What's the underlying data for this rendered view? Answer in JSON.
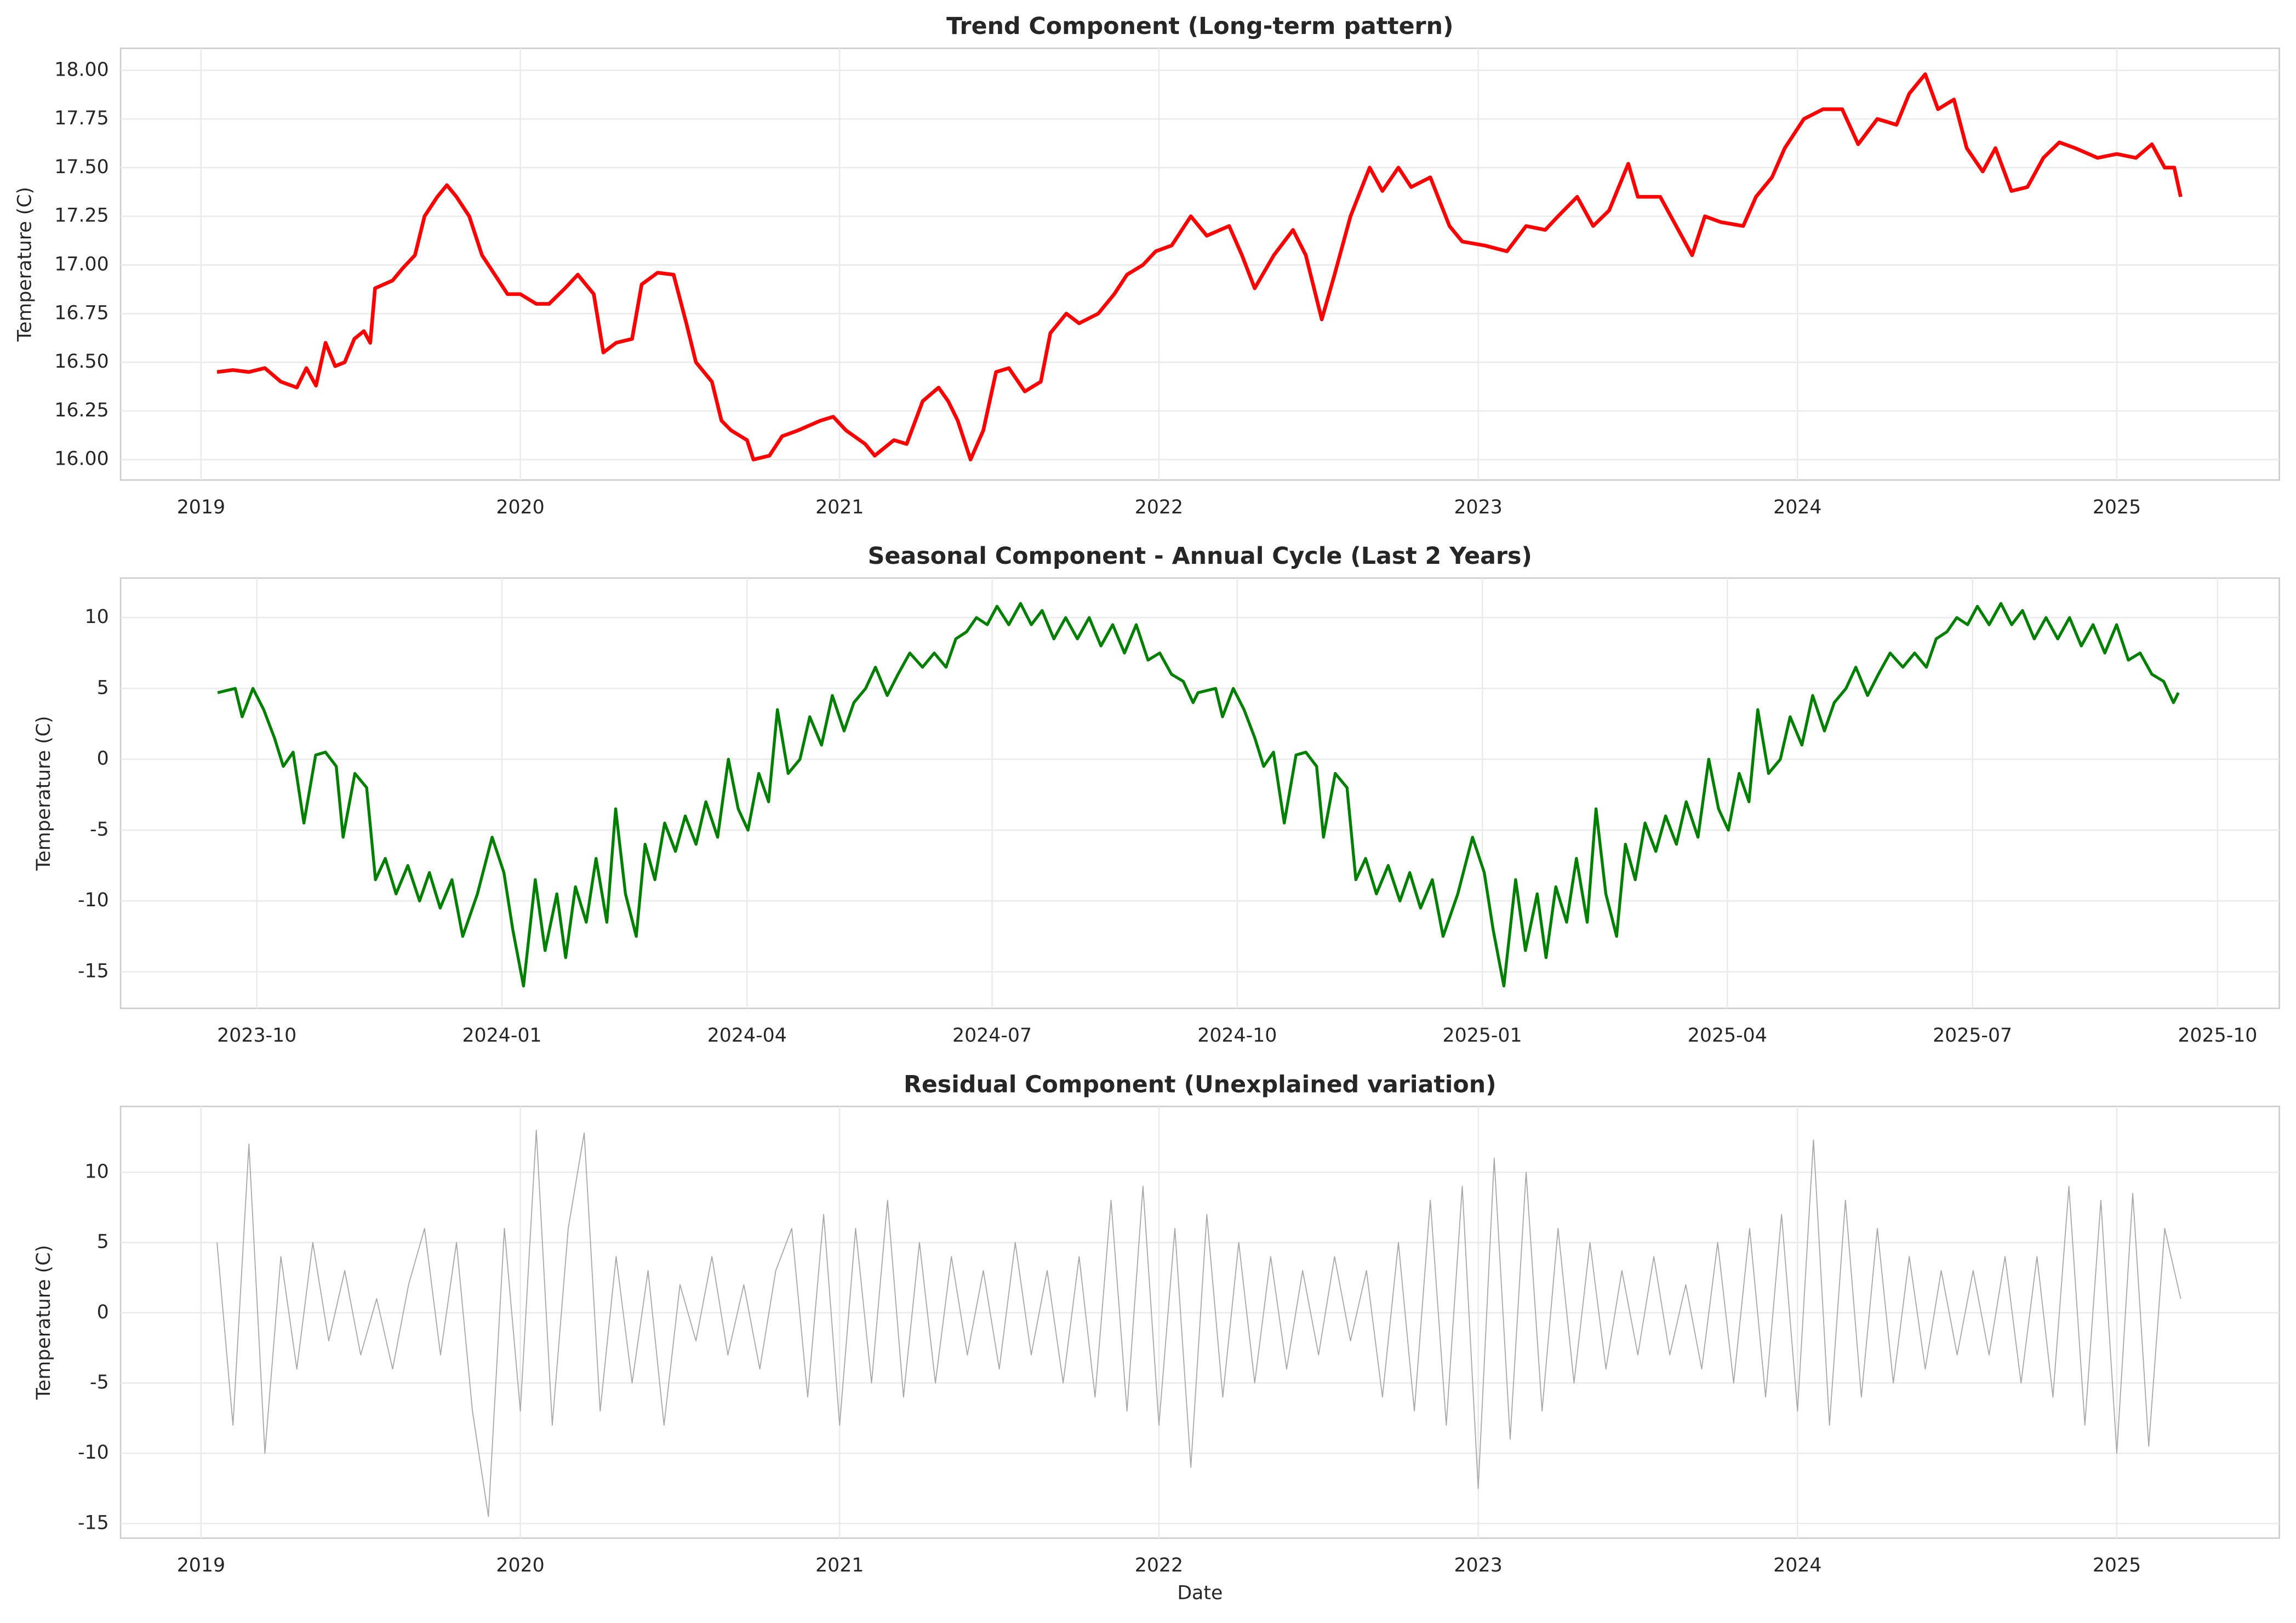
{
  "chart_data": [
    {
      "type": "line",
      "title": "Trend Component (Long-term pattern)",
      "y_label": "Temperature (C)",
      "grid": true,
      "xlim": [
        2018.748,
        2025.509
      ],
      "xticks": [
        2019,
        2020,
        2021,
        2022,
        2023,
        2024,
        2025
      ],
      "ylim": [
        15.895,
        18.113
      ],
      "yticks": [
        {
          "value": 16,
          "label": "16.00"
        },
        16.25,
        {
          "value": 16.5,
          "label": "16.50"
        },
        16.75,
        {
          "value": 17,
          "label": "17.00"
        },
        17.25,
        {
          "value": 17.5,
          "label": "17.50"
        },
        17.75,
        {
          "value": 18,
          "label": "18.00"
        }
      ],
      "x": [
        2019.05,
        2019.1,
        2019.15,
        2019.2,
        2019.25,
        2019.3,
        2019.33,
        2019.36,
        2019.39,
        2019.42,
        2019.45,
        2019.48,
        2019.51,
        2019.53,
        2019.545,
        2019.6,
        2019.63,
        2019.67,
        2019.7,
        2019.74,
        2019.77,
        2019.8,
        2019.84,
        2019.88,
        2019.92,
        2019.96,
        2020.0,
        2020.05,
        2020.09,
        2020.14,
        2020.18,
        2020.23,
        2020.26,
        2020.3,
        2020.35,
        2020.38,
        2020.43,
        2020.48,
        2020.52,
        2020.55,
        2020.6,
        2020.63,
        2020.66,
        2020.71,
        2020.73,
        2020.78,
        2020.82,
        2020.87,
        2020.94,
        2020.98,
        2021.02,
        2021.08,
        2021.11,
        2021.17,
        2021.21,
        2021.26,
        2021.31,
        2021.34,
        2021.37,
        2021.41,
        2021.45,
        2021.49,
        2021.53,
        2021.58,
        2021.63,
        2021.66,
        2021.71,
        2021.75,
        2021.81,
        2021.86,
        2021.9,
        2021.95,
        2021.99,
        2022.04,
        2022.1,
        2022.15,
        2022.22,
        2022.26,
        2022.3,
        2022.36,
        2022.42,
        2022.46,
        2022.51,
        2022.55,
        2022.6,
        2022.66,
        2022.7,
        2022.75,
        2022.79,
        2022.85,
        2022.91,
        2022.95,
        2023.02,
        2023.09,
        2023.15,
        2023.21,
        2023.25,
        2023.31,
        2023.36,
        2023.41,
        2023.47,
        2023.5,
        2023.57,
        2023.62,
        2023.67,
        2023.71,
        2023.76,
        2023.83,
        2023.87,
        2023.92,
        2023.96,
        2024.02,
        2024.08,
        2024.14,
        2024.19,
        2024.25,
        2024.31,
        2024.35,
        2024.4,
        2024.44,
        2024.49,
        2024.53,
        2024.58,
        2024.62,
        2024.67,
        2024.72,
        2024.77,
        2024.82,
        2024.87,
        2024.94,
        2025.0,
        2025.06,
        2025.11,
        2025.15,
        2025.18,
        2025.2
      ],
      "series": [
        {
          "color": "#ff0000",
          "values": [
            16.45,
            16.46,
            16.45,
            16.47,
            16.4,
            16.37,
            16.47,
            16.38,
            16.6,
            16.48,
            16.5,
            16.62,
            16.66,
            16.6,
            16.88,
            16.92,
            16.98,
            17.05,
            17.25,
            17.35,
            17.41,
            17.35,
            17.25,
            17.05,
            16.95,
            16.85,
            16.85,
            16.8,
            16.8,
            16.88,
            16.95,
            16.85,
            16.55,
            16.6,
            16.62,
            16.9,
            16.96,
            16.95,
            16.7,
            16.5,
            16.4,
            16.2,
            16.15,
            16.1,
            16.0,
            16.02,
            16.12,
            16.15,
            16.2,
            16.22,
            16.15,
            16.08,
            16.02,
            16.1,
            16.08,
            16.3,
            16.37,
            16.3,
            16.2,
            16.0,
            16.15,
            16.45,
            16.47,
            16.35,
            16.4,
            16.65,
            16.75,
            16.7,
            16.75,
            16.85,
            16.95,
            17.0,
            17.07,
            17.1,
            17.25,
            17.15,
            17.2,
            17.05,
            16.88,
            17.05,
            17.18,
            17.05,
            16.72,
            16.95,
            17.25,
            17.5,
            17.38,
            17.5,
            17.4,
            17.45,
            17.2,
            17.12,
            17.1,
            17.07,
            17.2,
            17.18,
            17.25,
            17.35,
            17.2,
            17.28,
            17.52,
            17.35,
            17.35,
            17.2,
            17.05,
            17.25,
            17.22,
            17.2,
            17.35,
            17.45,
            17.6,
            17.75,
            17.8,
            17.8,
            17.62,
            17.75,
            17.72,
            17.88,
            17.98,
            17.8,
            17.85,
            17.6,
            17.48,
            17.6,
            17.38,
            17.4,
            17.55,
            17.63,
            17.6,
            17.55,
            17.57,
            17.55,
            17.62,
            17.5,
            17.5,
            17.35
          ],
          "line_width": 2.5
        }
      ]
    },
    {
      "type": "line",
      "title": "Seasonal Component - Annual Cycle (Last 2 Years)",
      "y_label": "Temperature (C)",
      "grid": true,
      "xlim": [
        2023.611,
        2025.813
      ],
      "xticks": [
        {
          "value": 2023.75,
          "label": "2023-10"
        },
        {
          "value": 2024.0,
          "label": "2024-01"
        },
        {
          "value": 2024.25,
          "label": "2024-04"
        },
        {
          "value": 2024.5,
          "label": "2024-07"
        },
        {
          "value": 2024.75,
          "label": "2024-10"
        },
        {
          "value": 2025.0,
          "label": "2025-01"
        },
        {
          "value": 2025.25,
          "label": "2025-04"
        },
        {
          "value": 2025.5,
          "label": "2025-07"
        },
        {
          "value": 2025.75,
          "label": "2025-10"
        }
      ],
      "ylim": [
        -17.58,
        12.79
      ],
      "yticks": [
        -15,
        -10,
        -5,
        0,
        5,
        10
      ],
      "x": [
        2023.71,
        2023.728,
        2023.735,
        2023.746,
        2023.757,
        2023.768,
        2023.777,
        2023.787,
        2023.798,
        2023.81,
        2023.82,
        2023.831,
        2023.838,
        2023.85,
        2023.862,
        2023.871,
        2023.881,
        2023.892,
        2023.904,
        2023.916,
        2023.926,
        2023.937,
        2023.949,
        2023.96,
        2023.975,
        2023.99,
        2024.002,
        2024.011,
        2024.022,
        2024.034,
        2024.044,
        2024.056,
        2024.065,
        2024.075,
        2024.086,
        2024.096,
        2024.107,
        2024.116,
        2024.126,
        2024.137,
        2024.146,
        2024.156,
        2024.166,
        2024.177,
        2024.187,
        2024.198,
        2024.208,
        2024.22,
        2024.231,
        2024.241,
        2024.251,
        2024.262,
        2024.272,
        2024.281,
        2024.292,
        2024.304,
        2024.314,
        2024.326,
        2024.337,
        2024.349,
        2024.359,
        2024.371,
        2024.381,
        2024.393,
        2024.404,
        2024.416,
        2024.429,
        2024.441,
        2024.453,
        2024.463,
        2024.474,
        2024.484,
        2024.495,
        2024.505,
        2024.517,
        2024.529,
        2024.54,
        2024.551,
        2024.563,
        2024.575,
        2024.587,
        2024.599,
        2024.611,
        2024.623,
        2024.635,
        2024.647,
        2024.659,
        2024.671,
        2024.683,
        2024.695,
        2024.705,
        2024.71,
        2024.728,
        2024.735,
        2024.746,
        2024.757,
        2024.768,
        2024.777,
        2024.787,
        2024.798,
        2024.81,
        2024.82,
        2024.831,
        2024.838,
        2024.85,
        2024.862,
        2024.871,
        2024.881,
        2024.892,
        2024.904,
        2024.916,
        2024.926,
        2024.937,
        2024.949,
        2024.96,
        2024.975,
        2024.99,
        2025.002,
        2025.011,
        2025.022,
        2025.034,
        2025.044,
        2025.056,
        2025.065,
        2025.075,
        2025.086,
        2025.096,
        2025.107,
        2025.116,
        2025.126,
        2025.137,
        2025.146,
        2025.156,
        2025.166,
        2025.177,
        2025.187,
        2025.198,
        2025.208,
        2025.22,
        2025.231,
        2025.241,
        2025.251,
        2025.262,
        2025.272,
        2025.281,
        2025.292,
        2025.304,
        2025.314,
        2025.326,
        2025.337,
        2025.349,
        2025.359,
        2025.371,
        2025.381,
        2025.393,
        2025.404,
        2025.416,
        2025.429,
        2025.441,
        2025.453,
        2025.463,
        2025.474,
        2025.484,
        2025.495,
        2025.505,
        2025.517,
        2025.529,
        2025.54,
        2025.551,
        2025.563,
        2025.575,
        2025.587,
        2025.599,
        2025.611,
        2025.623,
        2025.635,
        2025.647,
        2025.659,
        2025.671,
        2025.683,
        2025.695,
        2025.705,
        2025.71
      ],
      "series": [
        {
          "color": "#008000",
          "line_width": 2,
          "values": [
            4.7,
            5.0,
            3.0,
            5.0,
            3.5,
            1.5,
            -0.5,
            0.5,
            -4.5,
            0.3,
            0.5,
            -0.5,
            -5.5,
            -1.0,
            -2.0,
            -8.5,
            -7.0,
            -9.5,
            -7.5,
            -10.0,
            -8.0,
            -10.5,
            -8.5,
            -12.5,
            -9.5,
            -5.5,
            -8.0,
            -12.0,
            -16.0,
            -8.5,
            -13.5,
            -9.5,
            -14.0,
            -9.0,
            -11.5,
            -7.0,
            -11.5,
            -3.5,
            -9.5,
            -12.5,
            -6.0,
            -8.5,
            -4.5,
            -6.5,
            -4.0,
            -6.0,
            -3.0,
            -5.5,
            0.0,
            -3.5,
            -5.0,
            -1.0,
            -3.0,
            3.5,
            -1.0,
            0.0,
            3.0,
            1.0,
            4.5,
            2.0,
            4.0,
            5.0,
            6.5,
            4.5,
            6.0,
            7.5,
            6.5,
            7.5,
            6.5,
            8.5,
            9.0,
            10.0,
            9.5,
            10.8,
            9.5,
            11.0,
            9.5,
            10.5,
            8.5,
            10.0,
            8.5,
            10.0,
            8.0,
            9.5,
            7.5,
            9.5,
            7.0,
            7.5,
            6.0,
            5.5,
            4.0,
            4.7,
            5.0,
            3.0,
            5.0,
            3.5,
            1.5,
            -0.5,
            0.5,
            -4.5,
            0.3,
            0.5,
            -0.5,
            -5.5,
            -1.0,
            -2.0,
            -8.5,
            -7.0,
            -9.5,
            -7.5,
            -10.0,
            -8.0,
            -10.5,
            -8.5,
            -12.5,
            -9.5,
            -5.5,
            -8.0,
            -12.0,
            -16.0,
            -8.5,
            -13.5,
            -9.5,
            -14.0,
            -9.0,
            -11.5,
            -7.0,
            -11.5,
            -3.5,
            -9.5,
            -12.5,
            -6.0,
            -8.5,
            -4.5,
            -6.5,
            -4.0,
            -6.0,
            -3.0,
            -5.5,
            0.0,
            -3.5,
            -5.0,
            -1.0,
            -3.0,
            3.5,
            -1.0,
            0.0,
            3.0,
            1.0,
            4.5,
            2.0,
            4.0,
            5.0,
            6.5,
            4.5,
            6.0,
            7.5,
            6.5,
            7.5,
            6.5,
            8.5,
            9.0,
            10.0,
            9.5,
            10.8,
            9.5,
            11.0,
            9.5,
            10.5,
            8.5,
            10.0,
            8.5,
            10.0,
            8.0,
            9.5,
            7.5,
            9.5,
            7.0,
            7.5,
            6.0,
            5.5,
            4.0,
            4.7
          ]
        }
      ]
    },
    {
      "type": "line",
      "title": "Residual Component (Unexplained variation)",
      "y_label": "Temperature (C)",
      "x_label": "Date",
      "grid": true,
      "xlim": [
        2018.748,
        2025.509
      ],
      "xticks": [
        2019,
        2020,
        2021,
        2022,
        2023,
        2024,
        2025
      ],
      "ylim": [
        -16.04,
        14.69
      ],
      "yticks": [
        -15,
        -10,
        -5,
        0,
        5,
        10
      ],
      "x": [
        2019.05,
        2019.1,
        2019.15,
        2019.2,
        2019.25,
        2019.3,
        2019.35,
        2019.4,
        2019.45,
        2019.5,
        2019.55,
        2019.6,
        2019.65,
        2019.7,
        2019.75,
        2019.8,
        2019.85,
        2019.9,
        2019.95,
        2020.0,
        2020.05,
        2020.1,
        2020.15,
        2020.2,
        2020.25,
        2020.3,
        2020.35,
        2020.4,
        2020.45,
        2020.5,
        2020.55,
        2020.6,
        2020.65,
        2020.7,
        2020.75,
        2020.8,
        2020.85,
        2020.9,
        2020.95,
        2021.0,
        2021.05,
        2021.1,
        2021.15,
        2021.2,
        2021.25,
        2021.3,
        2021.35,
        2021.4,
        2021.45,
        2021.5,
        2021.55,
        2021.6,
        2021.65,
        2021.7,
        2021.75,
        2021.8,
        2021.85,
        2021.9,
        2021.95,
        2022.0,
        2022.05,
        2022.1,
        2022.15,
        2022.2,
        2022.25,
        2022.3,
        2022.35,
        2022.4,
        2022.45,
        2022.5,
        2022.55,
        2022.6,
        2022.65,
        2022.7,
        2022.75,
        2022.8,
        2022.85,
        2022.9,
        2022.95,
        2023.0,
        2023.05,
        2023.1,
        2023.15,
        2023.2,
        2023.25,
        2023.3,
        2023.35,
        2023.4,
        2023.45,
        2023.5,
        2023.55,
        2023.6,
        2023.65,
        2023.7,
        2023.75,
        2023.8,
        2023.85,
        2023.9,
        2023.95,
        2024.0,
        2024.05,
        2024.1,
        2024.15,
        2024.2,
        2024.25,
        2024.3,
        2024.35,
        2024.4,
        2024.45,
        2024.5,
        2024.55,
        2024.6,
        2024.65,
        2024.7,
        2024.75,
        2024.8,
        2024.85,
        2024.9,
        2024.95,
        2025.0,
        2025.05,
        2025.1,
        2025.15,
        2025.2
      ],
      "series": [
        {
          "color": "#a9a9a9",
          "line_width": 0.7,
          "values": [
            5,
            -8,
            12,
            -10,
            4,
            -4,
            5,
            -2,
            3,
            -3,
            1,
            -4,
            2,
            6,
            -3,
            5,
            -7,
            -14.5,
            6,
            -7,
            13,
            -8,
            6,
            12.8,
            -7,
            4,
            -5,
            3,
            -8,
            2,
            -2,
            4,
            -3,
            2,
            -4,
            3,
            6,
            -6,
            7,
            -8,
            6,
            -5,
            8,
            -6,
            5,
            -5,
            4,
            -3,
            3,
            -4,
            5,
            -3,
            3,
            -5,
            4,
            -6,
            8,
            -7,
            9,
            -8,
            6,
            -11,
            7,
            -6,
            5,
            -5,
            4,
            -4,
            3,
            -3,
            4,
            -2,
            3,
            -6,
            5,
            -7,
            8,
            -8,
            9,
            -12.5,
            11,
            -9,
            10,
            -7,
            6,
            -5,
            5,
            -4,
            3,
            -3,
            4,
            -3,
            2,
            -4,
            5,
            -5,
            6,
            -6,
            7,
            -7,
            12.3,
            -8,
            8,
            -6,
            6,
            -5,
            4,
            -4,
            3,
            -3,
            3,
            -3,
            4,
            -5,
            4,
            -6,
            9,
            -8,
            8,
            -10,
            8.5,
            -9.5,
            6,
            1
          ]
        }
      ]
    }
  ]
}
